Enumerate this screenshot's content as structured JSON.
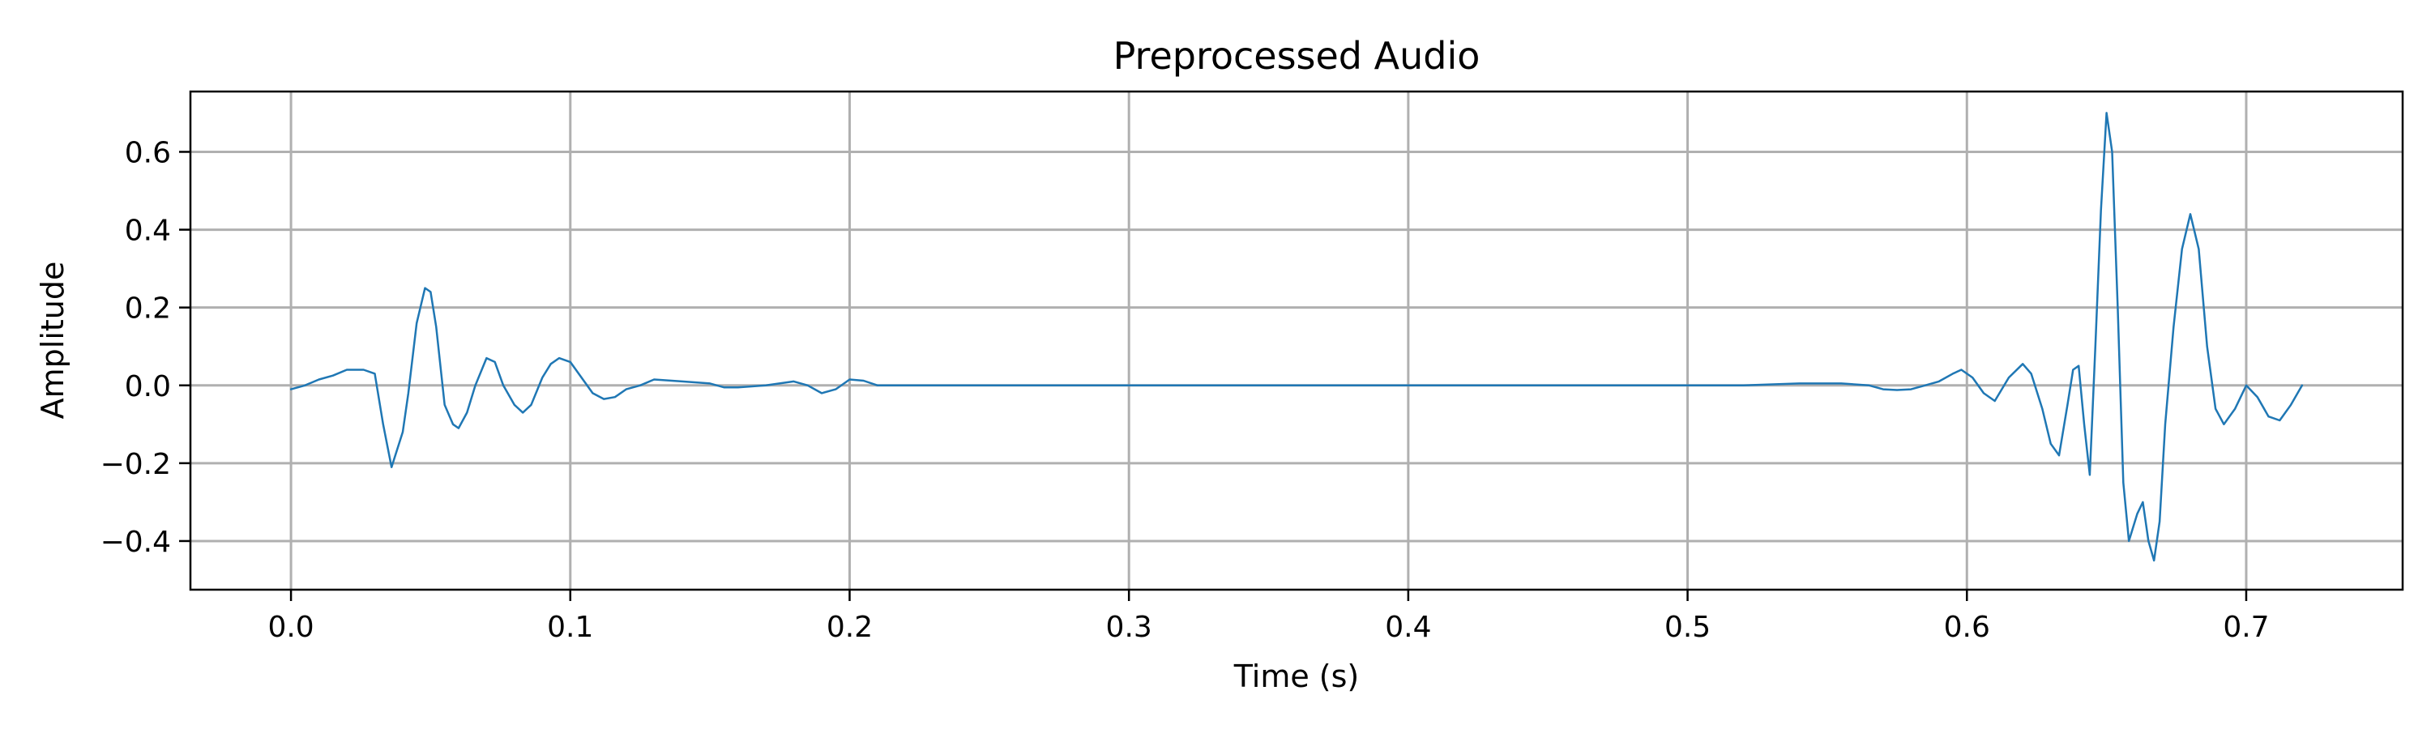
{
  "chart_data": {
    "type": "line",
    "title": "Preprocessed Audio",
    "xlabel": "Time (s)",
    "ylabel": "Amplitude",
    "xlim": [
      -0.036,
      0.756
    ],
    "ylim": [
      -0.525,
      0.755
    ],
    "xticks": [
      0.0,
      0.1,
      0.2,
      0.3,
      0.4,
      0.5,
      0.6,
      0.7
    ],
    "xtick_labels": [
      "0.0",
      "0.1",
      "0.2",
      "0.3",
      "0.4",
      "0.5",
      "0.6",
      "0.7"
    ],
    "yticks": [
      -0.4,
      -0.2,
      0.0,
      0.2,
      0.4,
      0.6
    ],
    "ytick_labels": [
      "−0.4",
      "−0.2",
      "0.0",
      "0.2",
      "0.4",
      "0.6"
    ],
    "grid": true,
    "line_color": "#1f77b4",
    "series": [
      {
        "x": [
          0.0,
          0.005,
          0.01,
          0.015,
          0.02,
          0.023,
          0.026,
          0.03,
          0.033,
          0.036,
          0.04,
          0.042,
          0.045,
          0.048,
          0.05,
          0.052,
          0.055,
          0.058,
          0.06,
          0.063,
          0.066,
          0.07,
          0.073,
          0.076,
          0.08,
          0.083,
          0.086,
          0.09,
          0.093,
          0.096,
          0.1,
          0.104,
          0.108,
          0.112,
          0.116,
          0.12,
          0.125,
          0.13,
          0.14,
          0.15,
          0.155,
          0.16,
          0.17,
          0.18,
          0.185,
          0.19,
          0.195,
          0.2,
          0.205,
          0.21,
          0.22,
          0.25,
          0.3,
          0.35,
          0.38,
          0.4,
          0.45,
          0.5,
          0.52,
          0.54,
          0.555,
          0.565,
          0.57,
          0.575,
          0.58,
          0.585,
          0.59,
          0.595,
          0.598,
          0.602,
          0.606,
          0.61,
          0.615,
          0.62,
          0.623,
          0.627,
          0.63,
          0.633,
          0.636,
          0.638,
          0.64,
          0.642,
          0.644,
          0.646,
          0.648,
          0.65,
          0.652,
          0.654,
          0.656,
          0.658,
          0.661,
          0.663,
          0.665,
          0.667,
          0.669,
          0.671,
          0.674,
          0.677,
          0.68,
          0.683,
          0.686,
          0.689,
          0.692,
          0.696,
          0.7,
          0.704,
          0.708,
          0.712,
          0.716,
          0.72
        ],
        "y": [
          -0.01,
          0.0,
          0.015,
          0.025,
          0.04,
          0.04,
          0.04,
          0.03,
          -0.1,
          -0.21,
          -0.12,
          -0.02,
          0.16,
          0.25,
          0.24,
          0.15,
          -0.05,
          -0.1,
          -0.11,
          -0.07,
          0.0,
          0.07,
          0.06,
          0.0,
          -0.05,
          -0.07,
          -0.05,
          0.02,
          0.055,
          0.07,
          0.06,
          0.02,
          -0.02,
          -0.035,
          -0.03,
          -0.01,
          0.0,
          0.015,
          0.01,
          0.005,
          -0.005,
          -0.005,
          0.0,
          0.01,
          0.0,
          -0.02,
          -0.01,
          0.015,
          0.012,
          0.0,
          0.0,
          0.0,
          0.0,
          0.0,
          0.0,
          0.0,
          0.0,
          0.0,
          0.0,
          0.005,
          0.005,
          0.0,
          -0.01,
          -0.012,
          -0.01,
          0.0,
          0.01,
          0.03,
          0.04,
          0.02,
          -0.02,
          -0.04,
          0.02,
          0.055,
          0.03,
          -0.06,
          -0.15,
          -0.18,
          -0.05,
          0.04,
          0.05,
          -0.1,
          -0.23,
          0.1,
          0.45,
          0.7,
          0.6,
          0.2,
          -0.25,
          -0.4,
          -0.33,
          -0.3,
          -0.4,
          -0.45,
          -0.35,
          -0.1,
          0.15,
          0.35,
          0.44,
          0.35,
          0.1,
          -0.06,
          -0.1,
          -0.06,
          0.0,
          -0.03,
          -0.08,
          -0.09,
          -0.05,
          0.0
        ]
      }
    ]
  }
}
